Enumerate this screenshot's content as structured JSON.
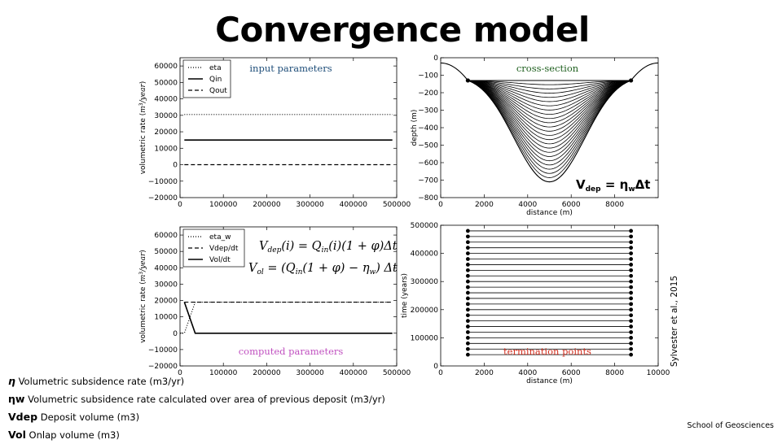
{
  "slide_title": "Convergence model",
  "definitions": [
    {
      "symbol": "η",
      "text": "Volumetric subsidence rate (m3/yr)"
    },
    {
      "symbol": "ηw",
      "text": "Volumetric subsidence rate calculated over area of previous deposit (m3/yr)"
    },
    {
      "symbol": "Vdep",
      "text": "Deposit volume (m3)"
    },
    {
      "symbol": "Vol",
      "text": "Onlap volume (m3)"
    }
  ],
  "citation": "Sylvester et al., 2015",
  "footer": "School of Geosciences",
  "chart_data": [
    {
      "type": "line",
      "panel": "input parameters",
      "annotation": "input parameters",
      "annotation_color": "#1f4e79",
      "ylabel": "volumetric rate (m3/year)",
      "xlim": [
        0,
        500000
      ],
      "ylim": [
        -20000,
        65000
      ],
      "xticks": [
        0,
        100000,
        200000,
        300000,
        400000,
        500000
      ],
      "xtick_labels": [
        "0",
        "100000",
        "200000",
        "300000",
        "400000",
        "500000"
      ],
      "yticks": [
        -20000,
        -10000,
        0,
        10000,
        20000,
        30000,
        40000,
        50000,
        60000
      ],
      "legend": "top-left",
      "series": [
        {
          "name": "eta",
          "style": "dotted",
          "x": [
            10000,
            490000
          ],
          "y": [
            30500,
            30500
          ]
        },
        {
          "name": "Qin",
          "style": "solid",
          "x": [
            10000,
            490000
          ],
          "y": [
            15000,
            15000
          ]
        },
        {
          "name": "Qout",
          "style": "dashed",
          "x": [
            10000,
            490000
          ],
          "y": [
            0,
            0
          ]
        }
      ]
    },
    {
      "type": "line",
      "panel": "cross-section",
      "annotation": "cross-section",
      "annotation_color": "#1e5f1e",
      "xlabel": "distance (m)",
      "ylabel": "depth (m)",
      "xlim": [
        0,
        10000
      ],
      "ylim": [
        -800,
        0
      ],
      "xticks": [
        0,
        2000,
        4000,
        6000,
        8000
      ],
      "yticks": [
        -800,
        -700,
        -600,
        -500,
        -400,
        -300,
        -200,
        -100,
        0
      ],
      "center_x": 5000,
      "surface_depth": -130,
      "surface_x": [
        1250,
        8750
      ],
      "deepest_depth": -710,
      "layer_count": 24,
      "equation": "V_dep = η_w Δt"
    },
    {
      "type": "line",
      "panel": "computed parameters",
      "annotation": "computed parameters",
      "annotation_color": "#c050c0",
      "ylabel": "volumetric rate (m3/year)",
      "xlim": [
        0,
        500000
      ],
      "ylim": [
        -20000,
        65000
      ],
      "xticks": [
        0,
        100000,
        200000,
        300000,
        400000,
        500000
      ],
      "xtick_labels": [
        "0",
        "100000",
        "200000",
        "300000",
        "400000",
        "500000"
      ],
      "yticks": [
        -20000,
        -10000,
        0,
        10000,
        20000,
        30000,
        40000,
        50000,
        60000
      ],
      "legend": "top-left",
      "equations": [
        "V_dep(i) = Q_in(i)(1 + φ)Δt",
        "V_ol = (Q_in(1 + φ) − η_w)Δt"
      ],
      "series": [
        {
          "name": "eta_w",
          "style": "dotted",
          "x": [
            0,
            10000,
            35000,
            490000
          ],
          "y": [
            0,
            0,
            19000,
            19000
          ]
        },
        {
          "name": "Vdep/dt",
          "style": "dashed",
          "x": [
            10000,
            490000
          ],
          "y": [
            19000,
            19000
          ]
        },
        {
          "name": "Vol/dt",
          "style": "solid",
          "x": [
            10000,
            35000,
            490000
          ],
          "y": [
            19000,
            0,
            0
          ]
        }
      ]
    },
    {
      "type": "scatter",
      "panel": "termination points",
      "annotation": "termination points",
      "annotation_color": "#d03020",
      "xlabel": "distance (m)",
      "ylabel": "time (years)",
      "xlim": [
        0,
        10000
      ],
      "ylim": [
        0,
        500000
      ],
      "xticks": [
        0,
        2000,
        4000,
        6000,
        8000,
        10000
      ],
      "yticks": [
        0,
        100000,
        200000,
        300000,
        400000,
        500000
      ],
      "x_left": 1250,
      "x_right": 8750,
      "times": [
        40000,
        60000,
        80000,
        100000,
        120000,
        140000,
        160000,
        180000,
        200000,
        220000,
        240000,
        260000,
        280000,
        300000,
        320000,
        340000,
        360000,
        380000,
        400000,
        420000,
        440000,
        460000,
        480000
      ]
    }
  ]
}
